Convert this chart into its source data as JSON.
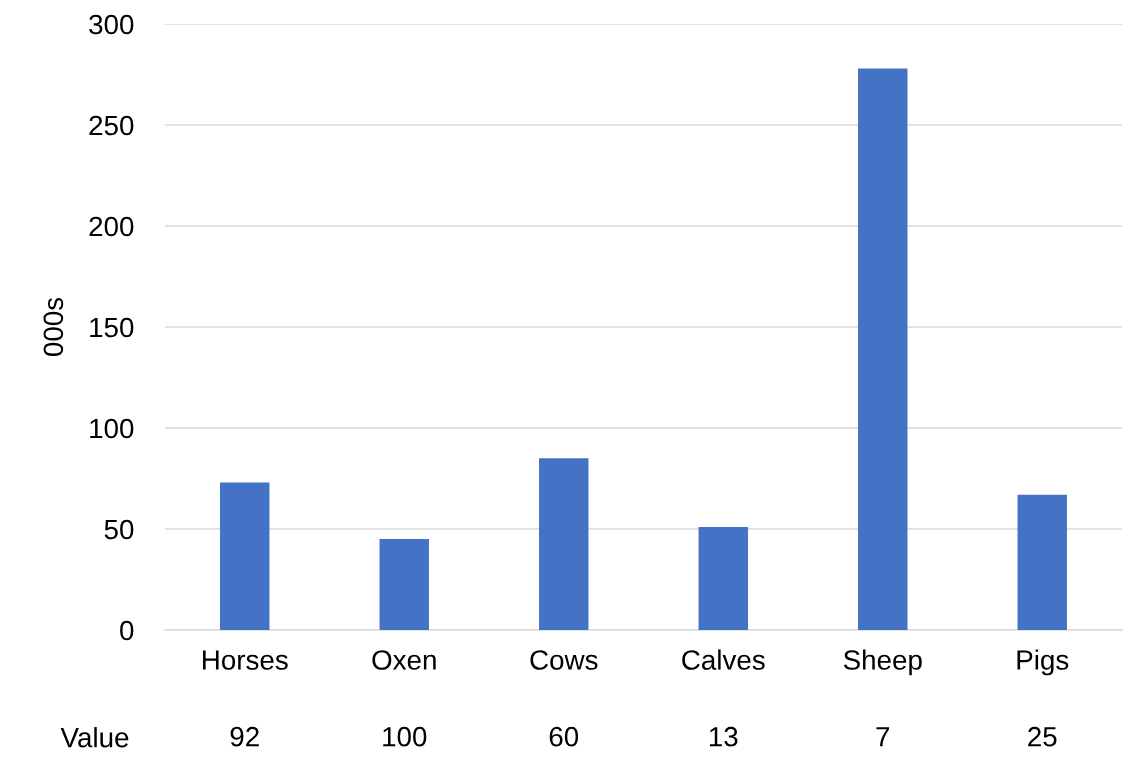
{
  "chart_data": {
    "type": "bar",
    "ylabel": "000s",
    "categories": [
      "Horses",
      "Oxen",
      "Cows",
      "Calves",
      "Sheep",
      "Pigs"
    ],
    "values": [
      73,
      45,
      85,
      51,
      278,
      67
    ],
    "color": "#4472c4",
    "ylim": [
      0,
      300
    ],
    "yticks": [
      0,
      50,
      100,
      150,
      200,
      250,
      300
    ],
    "grid": "y",
    "annotations": [
      "Value",
      "92",
      "100",
      "60",
      "13",
      "7",
      "25"
    ]
  }
}
